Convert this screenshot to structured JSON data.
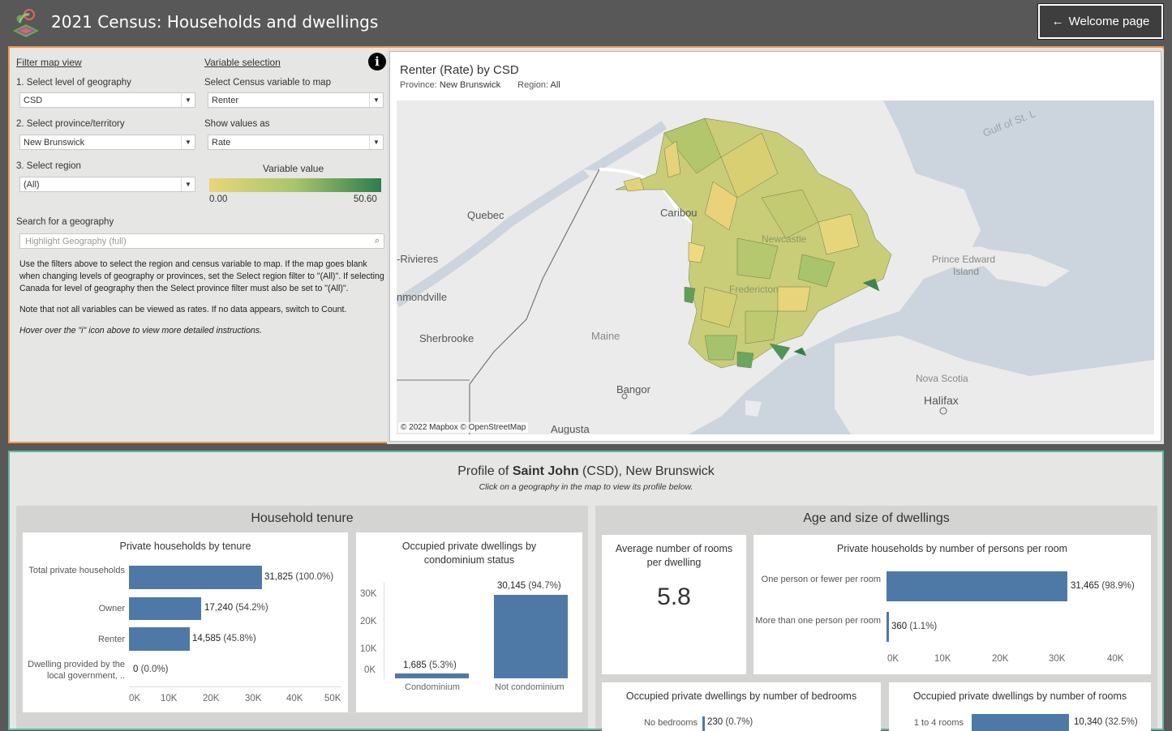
{
  "app": {
    "title": "2021 Census: Households and dwellings",
    "welcome_label": "Welcome page"
  },
  "filters": {
    "heading": "Filter map view",
    "geo_level_label": "1. Select level of geography",
    "geo_level_value": "CSD",
    "province_label": "2. Select province/territory",
    "province_value": "New Brunswick",
    "region_label": "3. Select region",
    "region_value": "(All)",
    "search_label": "Search for a geography",
    "search_placeholder": "Highlight Geography (full)"
  },
  "variable": {
    "heading": "Variable selection",
    "census_label": "Select Census variable to map",
    "census_value": "Renter",
    "show_label": "Show values as",
    "show_value": "Rate",
    "legend_title": "Variable value",
    "legend_min": "0.00",
    "legend_max": "50.60",
    "legend_colors": [
      "#e9d67a",
      "#a7c56d",
      "#2e7d4a"
    ]
  },
  "instructions": {
    "p1": "Use the filters above to select the region and census variable to map. If the map goes blank when changing levels of geography or provinces, set the Select region filter to \"(All)\". If selecting Canada for level of geography then the Select province filter must also be set to \"(All)\".",
    "p2": "Note that not all variables can be viewed as rates. If no data appears, switch to Count.",
    "p3": "Hover over the \"i\" icon above to view more detailed instructions."
  },
  "map": {
    "title_main": "Renter (Rate)",
    "title_by": " by CSD",
    "province_label": "Province:",
    "province_value": "New Brunswick",
    "region_label": "Region:",
    "region_value": "All",
    "credit": "© 2022 Mapbox © OpenStreetMap",
    "places": [
      "Quebec",
      "Caribou",
      "-Rivieres",
      "nmondville",
      "Sherbrooke",
      "Maine",
      "Bangor",
      "Augusta",
      "Gulf of St. L",
      "Prince Edward",
      "Island",
      "Nova Scotia",
      "Halifax",
      "Fredericton",
      "Newcastle"
    ]
  },
  "profile": {
    "prefix": "Profile of ",
    "geo_name": "Saint John",
    "suffix": " (CSD), New Brunswick",
    "subtitle": "Click on a geography in the map to view its profile below."
  },
  "tenure": {
    "section_title": "Household tenure",
    "chart1": {
      "title": "Private households by tenure",
      "labels": [
        "Total private households",
        "Owner",
        "Renter",
        "Dwelling provided by the local government, .."
      ],
      "value_labels": [
        "31,825",
        "17,240",
        "14,585",
        "0"
      ],
      "pct_labels": [
        "(100.0%)",
        "(54.2%)",
        "(45.8%)",
        "(0.0%)"
      ],
      "ticks": [
        "0K",
        "10K",
        "20K",
        "30K",
        "40K",
        "50K"
      ]
    },
    "chart2": {
      "title": "Occupied private dwellings by condominium status",
      "categories": [
        "Condominium",
        "Not condominium"
      ],
      "value_labels": [
        "1,685",
        "30,145"
      ],
      "pct_labels": [
        "(5.3%)",
        "(94.7%)"
      ],
      "ticks": [
        "30K",
        "20K",
        "10K",
        "0K"
      ]
    }
  },
  "dwellings": {
    "section_title": "Age and size of dwellings",
    "avg_rooms_title": "Average number of rooms per dwelling",
    "avg_rooms_value": "5.8",
    "persons_chart": {
      "title": "Private households by number of persons per room",
      "labels": [
        "One person or fewer per room",
        "More than one person per room"
      ],
      "value_labels": [
        "31,465",
        "360"
      ],
      "pct_labels": [
        "(98.9%)",
        "(1.1%)"
      ],
      "ticks": [
        "0K",
        "10K",
        "20K",
        "30K",
        "40K"
      ]
    },
    "bedrooms_chart": {
      "title": "Occupied private dwellings by number of bedrooms",
      "first_label": "No bedrooms",
      "first_value": "230",
      "first_pct": "(0.7%)"
    },
    "rooms_chart": {
      "title": "Occupied private dwellings by number of rooms",
      "first_label": "1 to 4 rooms",
      "first_value": "10,340",
      "first_pct": "(32.5%)"
    }
  },
  "chart_data": [
    {
      "type": "bar",
      "title": "Private households by tenure",
      "categories": [
        "Total private households",
        "Owner",
        "Renter",
        "Dwelling provided by the local government, .."
      ],
      "values": [
        31825,
        17240,
        14585,
        0
      ],
      "xlim": [
        0,
        50000
      ]
    },
    {
      "type": "bar",
      "title": "Occupied private dwellings by condominium status",
      "categories": [
        "Condominium",
        "Not condominium"
      ],
      "values": [
        1685,
        30145
      ],
      "ylim": [
        0,
        35000
      ]
    },
    {
      "type": "bar",
      "title": "Private households by number of persons per room",
      "categories": [
        "One person or fewer per room",
        "More than one person per room"
      ],
      "values": [
        31465,
        360
      ],
      "xlim": [
        0,
        43000
      ]
    }
  ]
}
